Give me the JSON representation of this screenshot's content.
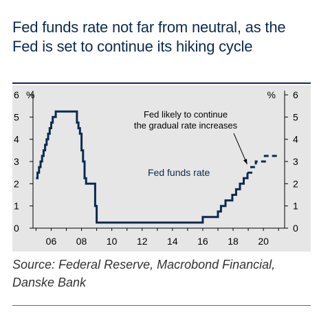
{
  "title": "Fed funds  rate not far from neutral, as the Fed is set to continue its hiking cycle",
  "source": "Source: Federal Reserve, Macrobond Financial, Danske Bank",
  "colors": {
    "series": "#0a2a50",
    "background": "#e6e6e6",
    "title": "#0a2a50"
  },
  "chart_data": {
    "type": "line",
    "title": "",
    "xlabel": "",
    "ylabel": "%",
    "ylabel_right": "%",
    "xlim": [
      2004.8,
      2021.4
    ],
    "ylim": [
      0,
      6
    ],
    "x_tick_labels": [
      "06",
      "08",
      "10",
      "12",
      "14",
      "16",
      "18",
      "20"
    ],
    "x_tick_values": [
      2006,
      2008,
      2010,
      2012,
      2014,
      2016,
      2018,
      2020
    ],
    "y_tick_labels": [
      "0",
      "1",
      "2",
      "3",
      "4",
      "5",
      "6"
    ],
    "y_tick_values": [
      0,
      1,
      2,
      3,
      4,
      5,
      6
    ],
    "grid": false,
    "series": [
      {
        "name": "Fed funds rate",
        "style": "solid",
        "x": [
          2005.0,
          2005.1,
          2005.2,
          2005.3,
          2005.4,
          2005.5,
          2005.6,
          2005.7,
          2005.8,
          2005.9,
          2006.0,
          2006.1,
          2006.2,
          2006.3,
          2006.4,
          2006.5,
          2007.6,
          2007.7,
          2007.8,
          2007.9,
          2008.0,
          2008.1,
          2008.2,
          2008.3,
          2008.8,
          2008.9,
          2009.0,
          2015.95,
          2016.0,
          2017.0,
          2017.2,
          2017.5,
          2017.95,
          2018.2,
          2018.45,
          2018.7,
          2018.95
        ],
        "y": [
          2.25,
          2.5,
          2.75,
          3.0,
          3.25,
          3.5,
          3.75,
          4.0,
          4.25,
          4.5,
          4.75,
          5.0,
          5.0,
          5.25,
          5.25,
          5.25,
          5.25,
          4.75,
          4.5,
          4.25,
          3.5,
          3.0,
          2.25,
          2.0,
          2.0,
          1.0,
          0.25,
          0.25,
          0.5,
          0.75,
          1.0,
          1.25,
          1.5,
          1.75,
          2.0,
          2.25,
          2.5
        ]
      },
      {
        "name": "Fed likely to continue the gradual rate increases",
        "style": "dashed",
        "x": [
          2018.95,
          2019.2,
          2019.5,
          2019.8,
          2020.1,
          2020.3,
          2021.1
        ],
        "y": [
          2.5,
          2.75,
          3.0,
          3.0,
          3.25,
          3.25,
          3.25
        ]
      }
    ],
    "series_label": "Fed funds rate",
    "annotation": {
      "lines": [
        "Fed likely to continue",
        "the gradual rate increases"
      ],
      "arrow_target": [
        2019.2,
        2.75
      ]
    }
  }
}
